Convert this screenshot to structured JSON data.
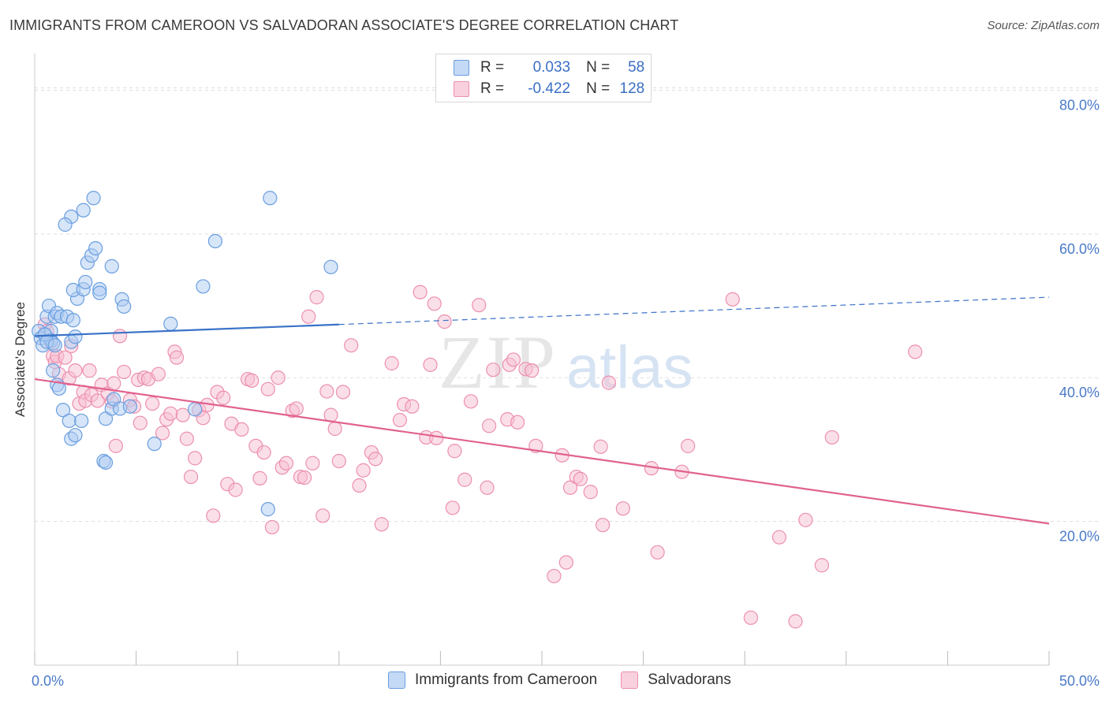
{
  "title": "IMMIGRANTS FROM CAMEROON VS SALVADORAN ASSOCIATE'S DEGREE CORRELATION CHART",
  "source": "Source: ZipAtlas.com",
  "watermark": {
    "zip": "ZIP",
    "atlas": "atlas"
  },
  "colors": {
    "blue_fill": "#aecbf2",
    "blue_stroke": "#6a9ee0",
    "blue_line": "#3a72c8",
    "pink_fill": "#f7bfd1",
    "pink_stroke": "#ec8fae",
    "pink_line": "#e0628f",
    "grid": "#dddddd",
    "tick_text": "#4a7ac8"
  },
  "legend_top": [
    {
      "r_label": "R =",
      "r_value": "0.033",
      "n_label": "N =",
      "n_value": "58"
    },
    {
      "r_label": "R =",
      "r_value": "-0.422",
      "n_label": "N =",
      "n_value": "128"
    }
  ],
  "chart_data": {
    "type": "scatter",
    "title": "IMMIGRANTS FROM CAMEROON VS SALVADORAN ASSOCIATE'S DEGREE CORRELATION CHART",
    "xlabel": "",
    "ylabel": "Associate's Degree",
    "xlim": [
      0,
      50
    ],
    "ylim": [
      0,
      84
    ],
    "x_tick_labels": [
      {
        "value": 0,
        "label": "0.0%"
      },
      {
        "value": 50,
        "label": "50.0%"
      }
    ],
    "y_tick_labels": [
      {
        "value": 20,
        "label": "20.0%"
      },
      {
        "value": 40,
        "label": "40.0%"
      },
      {
        "value": 60,
        "label": "60.0%"
      },
      {
        "value": 80,
        "label": "80.0%"
      }
    ],
    "x_minor_ticks": [
      0,
      5,
      10,
      15,
      20,
      25,
      30,
      35,
      40,
      45,
      50
    ],
    "grid": true,
    "legend_position": "bottom",
    "series": [
      {
        "name": "Immigrants from Cameroon",
        "color": "#aecbf2",
        "trend": {
          "x": [
            0,
            15
          ],
          "y": [
            45.8,
            47.4
          ],
          "dashed_extension": {
            "x": [
              15,
              50
            ],
            "y": [
              47.4,
              51.2
            ]
          }
        },
        "points": [
          [
            0.2,
            46.5
          ],
          [
            0.3,
            45.5
          ],
          [
            0.4,
            44.5
          ],
          [
            0.5,
            46
          ],
          [
            0.6,
            48.5
          ],
          [
            0.7,
            50
          ],
          [
            0.8,
            46.5
          ],
          [
            0.8,
            45.2
          ],
          [
            0.9,
            44.8
          ],
          [
            0.9,
            41
          ],
          [
            1.0,
            48.5
          ],
          [
            1.1,
            49
          ],
          [
            1.1,
            39
          ],
          [
            1.2,
            38.5
          ],
          [
            1.3,
            48.5
          ],
          [
            1.4,
            35.5
          ],
          [
            1.6,
            48.5
          ],
          [
            1.7,
            34
          ],
          [
            1.8,
            31.5
          ],
          [
            1.8,
            45
          ],
          [
            1.9,
            48
          ],
          [
            2.0,
            45.7
          ],
          [
            2.0,
            32
          ],
          [
            2.1,
            51
          ],
          [
            1.9,
            52.2
          ],
          [
            2.3,
            34
          ],
          [
            2.4,
            52.3
          ],
          [
            2.5,
            53.3
          ],
          [
            2.6,
            56
          ],
          [
            2.8,
            57
          ],
          [
            3.0,
            58
          ],
          [
            3.2,
            52.3
          ],
          [
            3.2,
            51.8
          ],
          [
            3.4,
            28.4
          ],
          [
            3.5,
            28.2
          ],
          [
            3.5,
            34.3
          ],
          [
            3.8,
            55.5
          ],
          [
            3.8,
            35.7
          ],
          [
            3.9,
            37
          ],
          [
            4.2,
            35.7
          ],
          [
            4.3,
            50.9
          ],
          [
            4.4,
            49.9
          ],
          [
            4.7,
            36
          ],
          [
            5.9,
            30.8
          ],
          [
            6.7,
            47.5
          ],
          [
            7.9,
            35.6
          ],
          [
            8.3,
            52.7
          ],
          [
            8.9,
            59
          ],
          [
            11.5,
            21.7
          ],
          [
            11.6,
            65
          ],
          [
            14.6,
            55.4
          ],
          [
            2.9,
            65
          ],
          [
            2.4,
            63.3
          ],
          [
            1.8,
            62.4
          ],
          [
            1.5,
            61.3
          ],
          [
            0.5,
            46
          ],
          [
            0.6,
            45
          ],
          [
            1.0,
            44.5
          ]
        ]
      },
      {
        "name": "Salvadorans",
        "color": "#f7bfd1",
        "trend": {
          "x": [
            0,
            50
          ],
          "y": [
            39.8,
            19.7
          ]
        },
        "points": [
          [
            0.5,
            47.4
          ],
          [
            0.6,
            46.5
          ],
          [
            0.8,
            45
          ],
          [
            0.9,
            43
          ],
          [
            1.0,
            42.2
          ],
          [
            1.1,
            43
          ],
          [
            1.2,
            40.5
          ],
          [
            1.5,
            42.8
          ],
          [
            1.7,
            39.9
          ],
          [
            1.8,
            44.4
          ],
          [
            2.0,
            41
          ],
          [
            2.2,
            36.4
          ],
          [
            2.4,
            38
          ],
          [
            2.5,
            36.8
          ],
          [
            2.7,
            41
          ],
          [
            2.8,
            37.6
          ],
          [
            3.1,
            36.8
          ],
          [
            3.3,
            39
          ],
          [
            3.6,
            37.8
          ],
          [
            3.8,
            36.7
          ],
          [
            3.9,
            39.2
          ],
          [
            4.0,
            30.5
          ],
          [
            4.2,
            45.8
          ],
          [
            4.4,
            40.8
          ],
          [
            4.7,
            36.9
          ],
          [
            4.9,
            36
          ],
          [
            5.1,
            39.7
          ],
          [
            5.2,
            33.7
          ],
          [
            5.4,
            40
          ],
          [
            5.6,
            39.8
          ],
          [
            5.8,
            36.4
          ],
          [
            6.1,
            40.5
          ],
          [
            6.3,
            32.3
          ],
          [
            6.5,
            34.2
          ],
          [
            6.7,
            35
          ],
          [
            6.9,
            43.6
          ],
          [
            7.0,
            42.8
          ],
          [
            7.3,
            34.8
          ],
          [
            7.5,
            31.5
          ],
          [
            7.7,
            26.2
          ],
          [
            7.9,
            28.8
          ],
          [
            8.1,
            35.5
          ],
          [
            8.3,
            34.4
          ],
          [
            8.5,
            36.2
          ],
          [
            8.8,
            20.8
          ],
          [
            9.0,
            38
          ],
          [
            9.3,
            37.2
          ],
          [
            9.5,
            25.2
          ],
          [
            9.7,
            33.6
          ],
          [
            9.9,
            24.4
          ],
          [
            10.2,
            32.8
          ],
          [
            10.5,
            39.8
          ],
          [
            10.7,
            39.6
          ],
          [
            10.9,
            30.5
          ],
          [
            11.1,
            26
          ],
          [
            11.3,
            29.6
          ],
          [
            11.5,
            38.4
          ],
          [
            11.7,
            19.2
          ],
          [
            12.0,
            40
          ],
          [
            12.2,
            27.5
          ],
          [
            12.4,
            28.1
          ],
          [
            12.7,
            35.4
          ],
          [
            12.9,
            35.7
          ],
          [
            13.1,
            26.2
          ],
          [
            13.3,
            26.1
          ],
          [
            13.5,
            48.5
          ],
          [
            13.7,
            28.1
          ],
          [
            13.9,
            51.2
          ],
          [
            14.2,
            20.8
          ],
          [
            14.4,
            38.1
          ],
          [
            14.6,
            34.8
          ],
          [
            14.8,
            32.9
          ],
          [
            15.0,
            28.4
          ],
          [
            15.2,
            38
          ],
          [
            15.6,
            44.5
          ],
          [
            16.0,
            25
          ],
          [
            16.2,
            27.1
          ],
          [
            16.6,
            29.6
          ],
          [
            16.8,
            28.7
          ],
          [
            17.1,
            19.6
          ],
          [
            17.6,
            42
          ],
          [
            18.0,
            34.1
          ],
          [
            18.2,
            36.3
          ],
          [
            18.6,
            36
          ],
          [
            19.0,
            51.9
          ],
          [
            19.3,
            31.7
          ],
          [
            19.5,
            41.8
          ],
          [
            19.7,
            50.3
          ],
          [
            19.8,
            31.6
          ],
          [
            20.2,
            47.8
          ],
          [
            20.6,
            21.9
          ],
          [
            20.7,
            29.8
          ],
          [
            21.2,
            25.8
          ],
          [
            21.5,
            36.7
          ],
          [
            21.9,
            50.1
          ],
          [
            22.3,
            24.7
          ],
          [
            22.4,
            33.3
          ],
          [
            22.6,
            41.1
          ],
          [
            23.3,
            34.2
          ],
          [
            23.4,
            41.8
          ],
          [
            23.6,
            42.5
          ],
          [
            23.8,
            33.8
          ],
          [
            24.2,
            41.2
          ],
          [
            24.5,
            41
          ],
          [
            24.7,
            30.5
          ],
          [
            25.6,
            12.4
          ],
          [
            26.0,
            29.2
          ],
          [
            26.2,
            14.3
          ],
          [
            26.4,
            24.7
          ],
          [
            26.7,
            26.2
          ],
          [
            26.9,
            25.9
          ],
          [
            27.4,
            24.1
          ],
          [
            27.9,
            30.4
          ],
          [
            28.0,
            19.5
          ],
          [
            28.3,
            39.3
          ],
          [
            29.0,
            21.8
          ],
          [
            30.4,
            27.4
          ],
          [
            30.7,
            15.7
          ],
          [
            31.9,
            26.9
          ],
          [
            32.2,
            30.5
          ],
          [
            34.4,
            50.9
          ],
          [
            35.3,
            6.6
          ],
          [
            36.7,
            17.8
          ],
          [
            37.5,
            6.1
          ],
          [
            38.0,
            20.2
          ],
          [
            38.8,
            13.9
          ],
          [
            39.3,
            31.7
          ],
          [
            43.4,
            43.6
          ]
        ]
      }
    ]
  }
}
